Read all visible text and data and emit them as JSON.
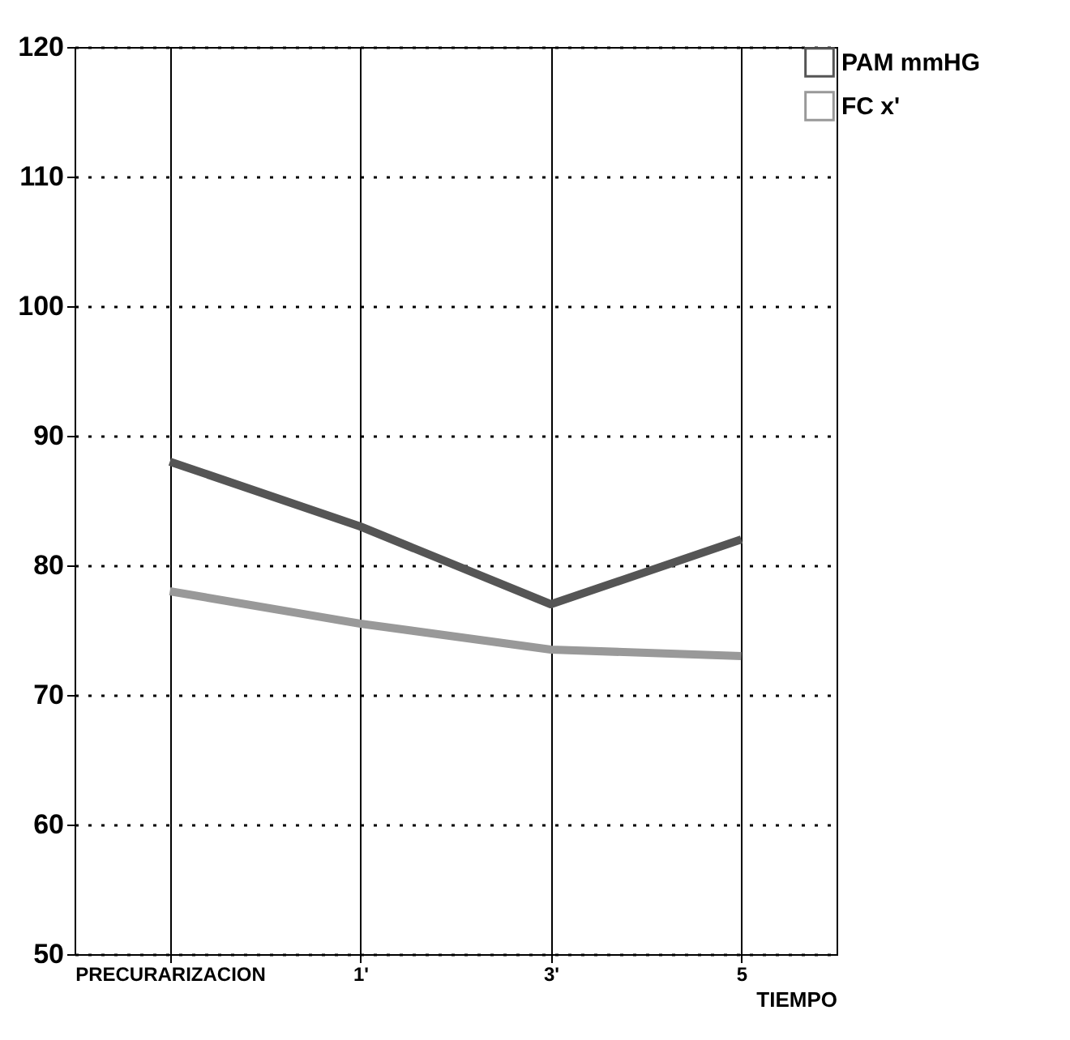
{
  "chart_data": {
    "type": "line",
    "xlabel": "TIEMPO",
    "categories": [
      "PRECURARIZACION",
      "1'",
      "3'",
      "5"
    ],
    "series": [
      {
        "name": "PAM mmHG",
        "color": "#555555",
        "values": [
          88,
          83,
          77,
          82
        ]
      },
      {
        "name": "FC x'",
        "color": "#999999",
        "values": [
          78,
          75.5,
          73.5,
          73
        ]
      }
    ],
    "ylim": [
      50,
      120
    ],
    "yticks": [
      50,
      60,
      70,
      80,
      90,
      100,
      110,
      120
    ],
    "grid": true,
    "legend": "right",
    "marker": "none",
    "line_style": "solid"
  }
}
